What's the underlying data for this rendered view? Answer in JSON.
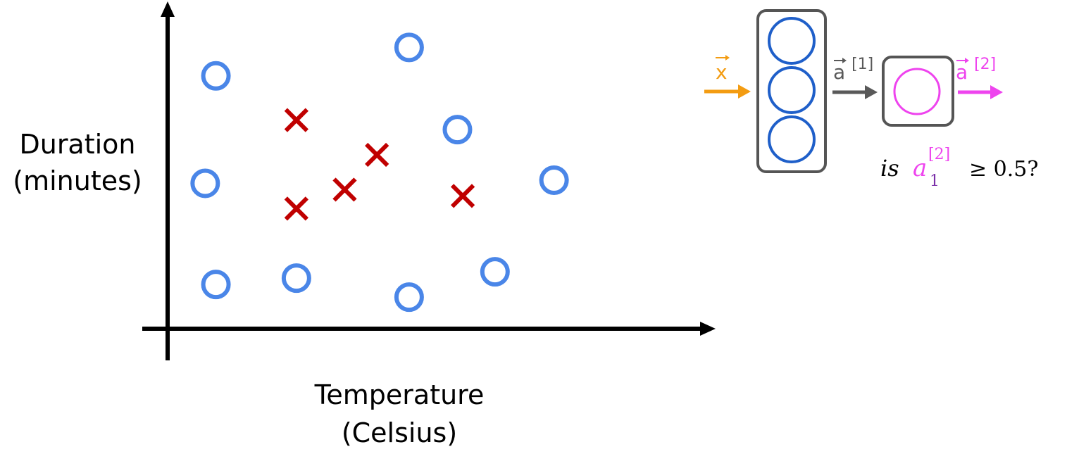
{
  "scatter": {
    "y_label_line1": "Duration",
    "y_label_line2": "(minutes)",
    "x_label_line1": "Temperature",
    "x_label_line2": "(Celsius)"
  },
  "chart_data": {
    "type": "scatter",
    "xlabel": "Temperature (Celsius)",
    "ylabel": "Duration (minutes)",
    "grid": false,
    "series": [
      {
        "marker": "circle",
        "color": "#4a86e8",
        "points": [
          {
            "x": 0.09,
            "y": 0.8
          },
          {
            "x": 0.45,
            "y": 0.89
          },
          {
            "x": 0.54,
            "y": 0.63
          },
          {
            "x": 0.07,
            "y": 0.46
          },
          {
            "x": 0.72,
            "y": 0.47
          },
          {
            "x": 0.09,
            "y": 0.14
          },
          {
            "x": 0.24,
            "y": 0.16
          },
          {
            "x": 0.45,
            "y": 0.1
          },
          {
            "x": 0.61,
            "y": 0.18
          }
        ]
      },
      {
        "marker": "cross",
        "color": "#c00000",
        "points": [
          {
            "x": 0.24,
            "y": 0.66
          },
          {
            "x": 0.39,
            "y": 0.55
          },
          {
            "x": 0.33,
            "y": 0.44
          },
          {
            "x": 0.24,
            "y": 0.38
          },
          {
            "x": 0.55,
            "y": 0.42
          }
        ]
      }
    ]
  },
  "network": {
    "input_label": "x",
    "hidden_label_base": "a",
    "hidden_label_sup": "[1]",
    "output_label_base": "a",
    "output_label_sup": "[2]",
    "hidden_units": 3,
    "output_units": 1,
    "colors": {
      "input": "#f39c12",
      "hidden_node": "#1f5fc9",
      "output": "#ee44ee",
      "box": "#555555",
      "arrow_mid": "#595959"
    }
  },
  "question": {
    "prefix": "is",
    "var": "a",
    "sup": "[2]",
    "sub": "1",
    "suffix": "≥ 0.5?"
  }
}
